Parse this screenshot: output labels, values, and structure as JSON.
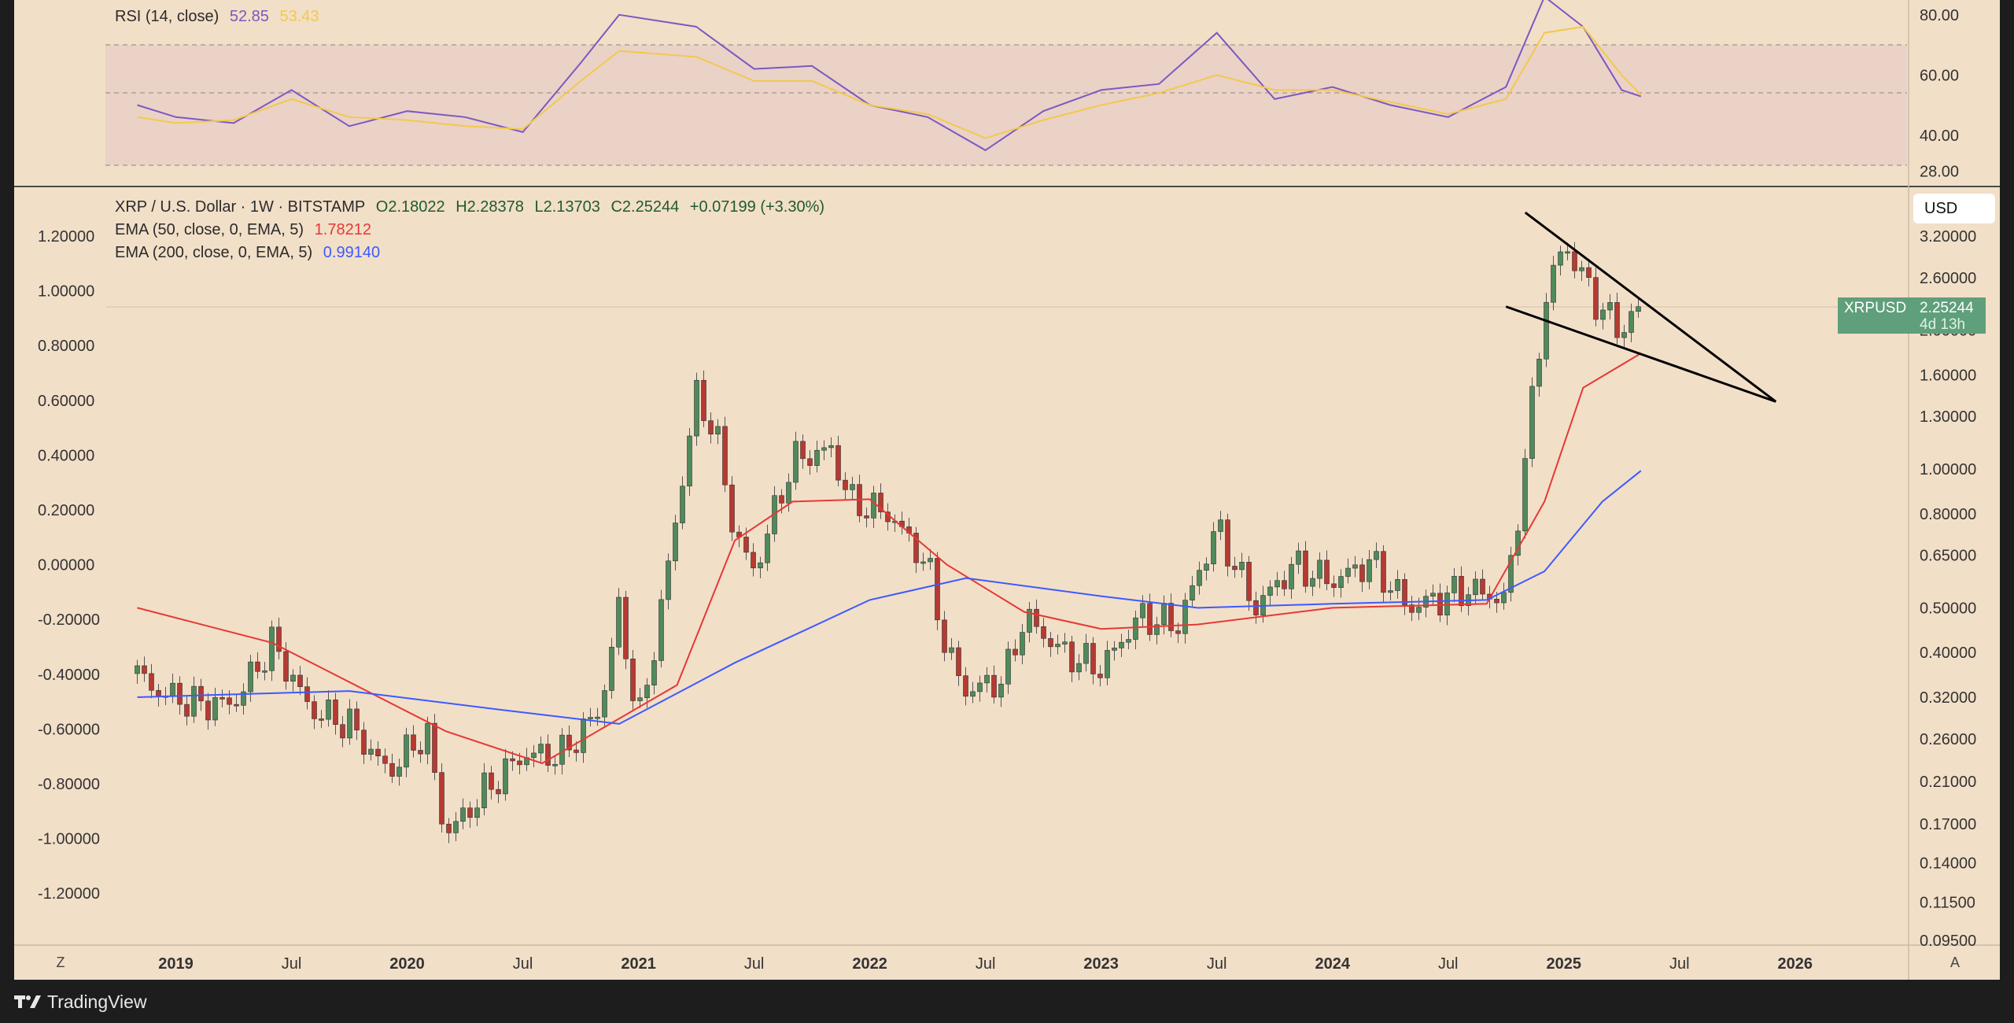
{
  "rsi_panel": {
    "title": "RSI (14, close)",
    "rsi_value": "52.85",
    "ma_value": "53.43",
    "axis_labels": [
      "80.00",
      "60.00",
      "40.00",
      "28.00"
    ],
    "colors": {
      "rsi": "#7e57c2",
      "ma": "#f2c94c",
      "band": "#ead0c8",
      "overbought_fill": "#5fae7a"
    }
  },
  "main_panel": {
    "symbol_line": {
      "name": "XRP / U.S. Dollar · 1W · BITSTAMP",
      "open": "O2.18022",
      "high": "H2.28378",
      "low": "L2.13703",
      "close": "C2.25244",
      "change": "+0.07199 (+3.30%)"
    },
    "ema50": {
      "label": "EMA (50, close, 0, EMA, 5)",
      "value": "1.78212",
      "color": "#e53935"
    },
    "ema200": {
      "label": "EMA (200, close, 0, EMA, 5)",
      "value": "0.99140",
      "color": "#3d5afe"
    },
    "left_axis_labels": [
      "1.20000",
      "1.00000",
      "0.80000",
      "0.60000",
      "0.40000",
      "0.20000",
      "0.00000",
      "-0.20000",
      "-0.40000",
      "-0.60000",
      "-0.80000",
      "-1.00000",
      "-1.20000"
    ],
    "right_axis_labels": [
      "3.20000",
      "2.60000",
      "2.00000",
      "1.60000",
      "1.30000",
      "1.00000",
      "0.80000",
      "0.65000",
      "0.50000",
      "0.40000",
      "0.32000",
      "0.26000",
      "0.21000",
      "0.17000",
      "0.14000",
      "0.11500",
      "0.09500"
    ],
    "currency_button": "USD",
    "price_tag": {
      "symbol": "XRPUSD",
      "price": "2.25244",
      "countdown": "4d 13h",
      "color": "#5f9f7b"
    },
    "candle_colors": {
      "up": "#4f8a5b",
      "down": "#b63a32"
    }
  },
  "time_axis": {
    "labels": [
      "2019",
      "Jul",
      "2020",
      "Jul",
      "2021",
      "Jul",
      "2022",
      "Jul",
      "2023",
      "Jul",
      "2024",
      "Jul",
      "2025",
      "Jul",
      "2026"
    ],
    "left_button": "Z",
    "right_button": "A"
  },
  "footer": {
    "brand": "TradingView"
  },
  "chart_data": [
    {
      "type": "line",
      "title": "RSI (14, close)",
      "y_axis": {
        "ticks": [
          80,
          60,
          40,
          28
        ],
        "bands": [
          30,
          50,
          70
        ]
      },
      "x": [
        "2018-11",
        "2019-01",
        "2019-04",
        "2019-07",
        "2019-10",
        "2020-01",
        "2020-04",
        "2020-07",
        "2020-10",
        "2020-12",
        "2021-04",
        "2021-07",
        "2021-10",
        "2022-01",
        "2022-04",
        "2022-07",
        "2022-10",
        "2023-01",
        "2023-04",
        "2023-07",
        "2023-10",
        "2024-01",
        "2024-04",
        "2024-07",
        "2024-10",
        "2024-12",
        "2025-02",
        "2025-04",
        "2025-05"
      ],
      "series": [
        {
          "name": "RSI",
          "values": [
            50,
            46,
            44,
            55,
            43,
            48,
            46,
            41,
            64,
            80,
            76,
            62,
            63,
            50,
            46,
            35,
            48,
            55,
            57,
            74,
            52,
            56,
            50,
            46,
            56,
            86,
            76,
            55,
            52.85
          ]
        },
        {
          "name": "MA",
          "values": [
            46,
            44,
            45,
            52,
            46,
            45,
            43,
            42,
            58,
            68,
            66,
            58,
            58,
            50,
            47,
            39,
            45,
            50,
            54,
            60,
            55,
            55,
            51,
            47,
            52,
            74,
            76,
            60,
            53.43
          ]
        }
      ]
    },
    {
      "type": "candlestick",
      "title": "XRP / U.S. Dollar · 1W · BITSTAMP",
      "scale": "log",
      "y_axis_ticks": [
        3.2,
        2.6,
        2.0,
        1.6,
        1.3,
        1.0,
        0.8,
        0.65,
        0.5,
        0.4,
        0.32,
        0.26,
        0.21,
        0.17,
        0.14,
        0.115,
        0.095
      ],
      "x_axis_ticks": [
        "2019",
        "Jul",
        "2020",
        "Jul",
        "2021",
        "Jul",
        "2022",
        "Jul",
        "2023",
        "Jul",
        "2024",
        "Jul",
        "2025",
        "Jul",
        "2026"
      ],
      "price_path": {
        "x": [
          "2018-11",
          "2018-12",
          "2019-02",
          "2019-04",
          "2019-06",
          "2019-08",
          "2019-10",
          "2019-12",
          "2020-02",
          "2020-03",
          "2020-05",
          "2020-07",
          "2020-09",
          "2020-11",
          "2020-12",
          "2021-01",
          "2021-02",
          "2021-04",
          "2021-05",
          "2021-06",
          "2021-07",
          "2021-09",
          "2021-11",
          "2021-12",
          "2022-02",
          "2022-04",
          "2022-05",
          "2022-06",
          "2022-08",
          "2022-09",
          "2022-11",
          "2023-01",
          "2023-03",
          "2023-05",
          "2023-07",
          "2023-09",
          "2023-11",
          "2024-01",
          "2024-03",
          "2024-05",
          "2024-08",
          "2024-10",
          "2024-11",
          "2024-12",
          "2025-01",
          "2025-02",
          "2025-03",
          "2025-04",
          "2025-05"
        ],
        "close": [
          0.36,
          0.33,
          0.31,
          0.31,
          0.42,
          0.3,
          0.28,
          0.22,
          0.27,
          0.16,
          0.2,
          0.24,
          0.24,
          0.3,
          0.5,
          0.28,
          0.45,
          1.45,
          1.2,
          0.72,
          0.6,
          1.05,
          1.1,
          0.85,
          0.8,
          0.62,
          0.4,
          0.33,
          0.35,
          0.48,
          0.4,
          0.37,
          0.48,
          0.46,
          0.75,
          0.5,
          0.62,
          0.57,
          0.63,
          0.5,
          0.55,
          0.52,
          1.05,
          2.3,
          3.1,
          2.6,
          2.2,
          2.0,
          2.25244
        ]
      },
      "ema50_path": {
        "x": [
          "2018-11",
          "2019-06",
          "2020-03",
          "2020-08",
          "2021-03",
          "2021-06",
          "2021-09",
          "2022-01",
          "2022-05",
          "2022-09",
          "2023-01",
          "2023-06",
          "2024-01",
          "2024-09",
          "2024-12",
          "2025-02",
          "2025-05"
        ],
        "values": [
          0.5,
          0.42,
          0.27,
          0.23,
          0.34,
          0.7,
          0.85,
          0.86,
          0.62,
          0.49,
          0.45,
          0.46,
          0.5,
          0.51,
          0.85,
          1.5,
          1.78212
        ]
      },
      "ema200_path": {
        "x": [
          "2018-11",
          "2019-10",
          "2020-06",
          "2020-12",
          "2021-06",
          "2022-01",
          "2022-06",
          "2023-01",
          "2023-06",
          "2024-01",
          "2024-09",
          "2024-12",
          "2025-03",
          "2025-05"
        ],
        "values": [
          0.32,
          0.33,
          0.3,
          0.28,
          0.38,
          0.52,
          0.58,
          0.53,
          0.5,
          0.51,
          0.52,
          0.6,
          0.85,
          0.9914
        ]
      },
      "trendlines": [
        {
          "name": "upper",
          "from": [
            "2024-11",
            3.6
          ],
          "to": [
            "2025-12",
            1.4
          ]
        },
        {
          "name": "lower",
          "from": [
            "2024-10",
            2.25
          ],
          "to": [
            "2025-12",
            1.4
          ]
        }
      ],
      "last": {
        "open": 2.18022,
        "high": 2.28378,
        "low": 2.13703,
        "close": 2.25244,
        "change": 0.07199,
        "change_pct": 3.3
      }
    }
  ]
}
